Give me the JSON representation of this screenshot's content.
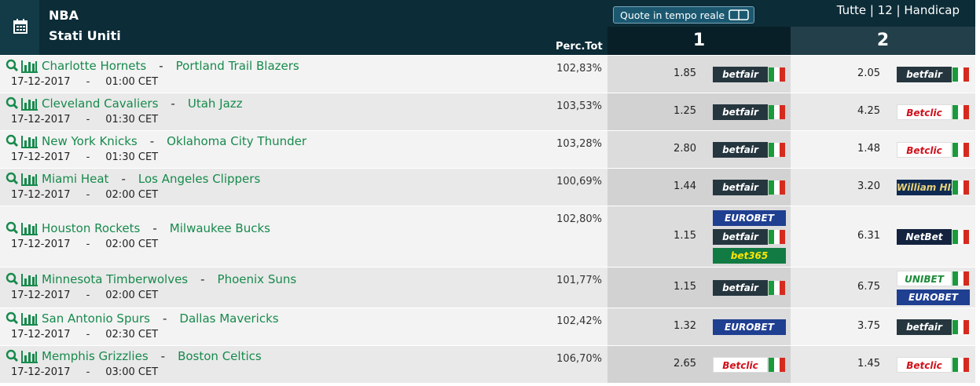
{
  "header": {
    "sport": "NBA",
    "country": "Stati Uniti",
    "live_button": "Quote in tempo reale",
    "filters": "Tutte | 12 | Handicap",
    "columns": {
      "perc": "Perc.Tot",
      "home": "1",
      "away": "2"
    }
  },
  "separator": "-",
  "bookmakers": {
    "betfair": {
      "name": "betfair",
      "bg": "#26363f",
      "fg": "#ffffff",
      "flag": true
    },
    "betclic": {
      "name": "Betclic",
      "bg": "#ffffff",
      "fg": "#d0111b",
      "flag": true
    },
    "eurobet": {
      "name": "EUROBET",
      "bg": "#1f3f91",
      "fg": "#ffffff",
      "flag": false
    },
    "bet365": {
      "name": "bet365",
      "bg": "#127a43",
      "fg": "#ffe500",
      "flag": false
    },
    "williamhill": {
      "name": "William HILL",
      "bg": "#0f2a52",
      "fg": "#e8d27a",
      "flag": true
    },
    "netbet": {
      "name": "NetBet",
      "bg": "#13233f",
      "fg": "#ffffff",
      "flag": true
    },
    "unibet": {
      "name": "UNIBET",
      "bg": "#ffffff",
      "fg": "#1d8a3a",
      "flag": true
    }
  },
  "matches": [
    {
      "home": "Charlotte Hornets",
      "away": "Portland Trail Blazers",
      "date": "17-12-2017",
      "time": "01:00 CET",
      "perc": "102,83%",
      "odds": [
        {
          "value": "1.85",
          "books": [
            "betfair"
          ]
        },
        {
          "value": "2.05",
          "books": [
            "betfair"
          ]
        }
      ]
    },
    {
      "home": "Cleveland Cavaliers",
      "away": "Utah Jazz",
      "date": "17-12-2017",
      "time": "01:30 CET",
      "perc": "103,53%",
      "odds": [
        {
          "value": "1.25",
          "books": [
            "betfair"
          ]
        },
        {
          "value": "4.25",
          "books": [
            "betclic"
          ]
        }
      ]
    },
    {
      "home": "New York Knicks",
      "away": "Oklahoma City Thunder",
      "date": "17-12-2017",
      "time": "01:30 CET",
      "perc": "103,28%",
      "odds": [
        {
          "value": "2.80",
          "books": [
            "betfair"
          ]
        },
        {
          "value": "1.48",
          "books": [
            "betclic"
          ]
        }
      ]
    },
    {
      "home": "Miami Heat",
      "away": "Los Angeles Clippers",
      "date": "17-12-2017",
      "time": "02:00 CET",
      "perc": "100,69%",
      "odds": [
        {
          "value": "1.44",
          "books": [
            "betfair"
          ]
        },
        {
          "value": "3.20",
          "books": [
            "williamhill"
          ]
        }
      ]
    },
    {
      "home": "Houston Rockets",
      "away": "Milwaukee Bucks",
      "date": "17-12-2017",
      "time": "02:00 CET",
      "perc": "102,80%",
      "odds": [
        {
          "value": "1.15",
          "books": [
            "eurobet",
            "betfair",
            "bet365"
          ]
        },
        {
          "value": "6.31",
          "books": [
            "netbet"
          ]
        }
      ]
    },
    {
      "home": "Minnesota Timberwolves",
      "away": "Phoenix Suns",
      "date": "17-12-2017",
      "time": "02:00 CET",
      "perc": "101,77%",
      "odds": [
        {
          "value": "1.15",
          "books": [
            "betfair"
          ]
        },
        {
          "value": "6.75",
          "books": [
            "unibet",
            "eurobet"
          ]
        }
      ]
    },
    {
      "home": "San Antonio Spurs",
      "away": "Dallas Mavericks",
      "date": "17-12-2017",
      "time": "02:30 CET",
      "perc": "102,42%",
      "odds": [
        {
          "value": "1.32",
          "books": [
            "eurobet"
          ]
        },
        {
          "value": "3.75",
          "books": [
            "betfair"
          ]
        }
      ]
    },
    {
      "home": "Memphis Grizzlies",
      "away": "Boston Celtics",
      "date": "17-12-2017",
      "time": "03:00 CET",
      "perc": "106,70%",
      "odds": [
        {
          "value": "2.65",
          "books": [
            "betclic"
          ]
        },
        {
          "value": "1.45",
          "books": [
            "betclic"
          ]
        }
      ]
    }
  ]
}
